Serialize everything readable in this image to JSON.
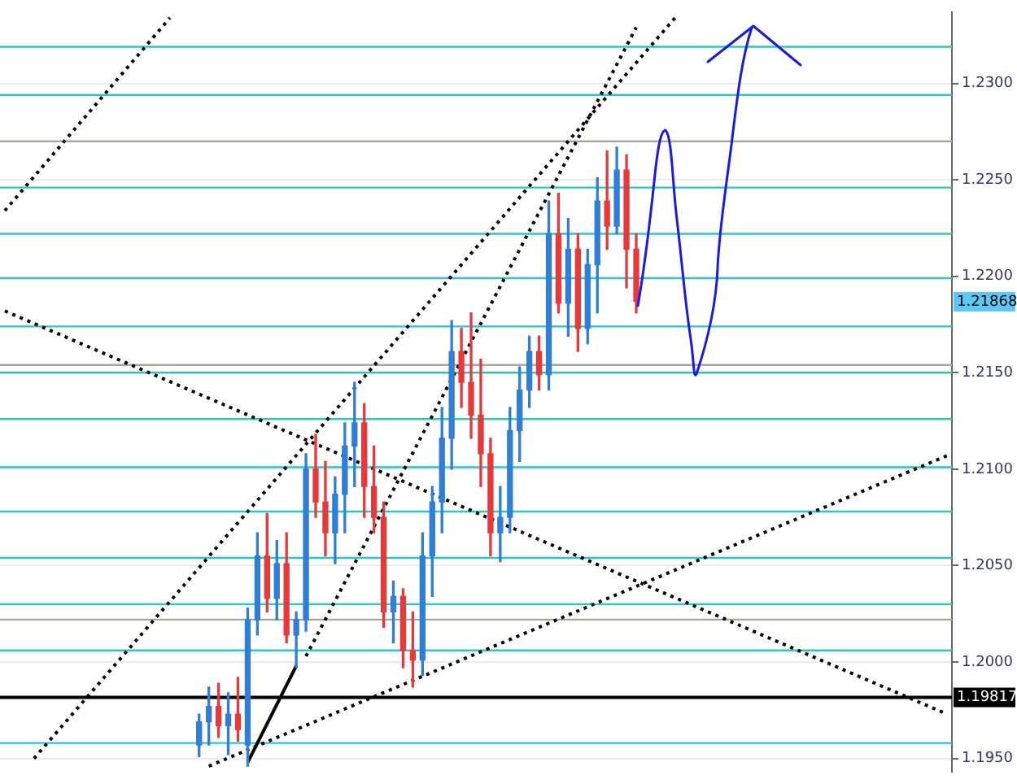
{
  "chart_data": {
    "type": "candlestick",
    "categories": [
      null,
      null,
      null,
      null,
      null,
      null,
      null,
      null,
      null,
      null,
      null,
      null,
      null,
      null,
      null,
      null,
      null,
      null,
      null,
      null,
      null,
      null,
      null,
      null,
      null,
      null,
      null,
      null,
      null,
      null,
      null,
      null,
      null,
      null,
      null,
      null,
      null,
      null,
      null,
      null,
      null,
      null,
      null,
      null,
      null,
      null,
      null,
      null,
      null,
      null,
      null,
      null,
      null,
      null,
      null,
      null,
      null,
      null,
      null,
      null,
      null,
      null,
      null,
      null,
      null,
      null,
      null,
      null,
      null,
      null,
      null,
      null,
      null,
      null,
      null,
      null,
      null,
      null,
      null,
      null,
      null,
      null,
      null,
      null,
      null,
      null,
      null,
      null,
      null,
      null,
      null,
      null,
      null,
      null,
      null,
      null,
      null,
      null
    ],
    "ohlc": [
      null,
      null,
      null,
      null,
      null,
      null,
      null,
      null,
      null,
      null,
      null,
      null,
      null,
      null,
      null,
      null,
      null,
      null,
      null,
      null,
      [
        1.1957,
        1.1973,
        1.1951,
        1.1969
      ],
      [
        1.1969,
        1.1987,
        1.1957,
        1.1977
      ],
      [
        1.1977,
        1.1989,
        1.1961,
        1.1967
      ],
      [
        1.1967,
        1.1984,
        1.1952,
        1.1973
      ],
      [
        1.1973,
        1.1992,
        1.1959,
        1.1965
      ],
      [
        1.1957,
        1.2028,
        1.1946,
        1.2022
      ],
      [
        1.2022,
        1.2067,
        1.2014,
        1.2055
      ],
      [
        1.2055,
        1.2077,
        1.2026,
        1.2033
      ],
      [
        1.2033,
        1.2063,
        1.2022,
        1.2051
      ],
      [
        1.2051,
        1.2067,
        1.201,
        1.2014
      ],
      [
        1.2014,
        1.2026,
        1.1997,
        1.2022
      ],
      [
        1.2022,
        1.2108,
        1.2016,
        1.21
      ],
      [
        1.21,
        1.2118,
        1.2075,
        1.2083
      ],
      [
        1.2083,
        1.2104,
        1.2055,
        1.2067
      ],
      [
        1.2067,
        1.2096,
        1.2051,
        1.2087
      ],
      [
        1.2087,
        1.2124,
        1.2067,
        1.2112
      ],
      [
        1.2112,
        1.2145,
        1.2091,
        1.2124
      ],
      [
        1.2124,
        1.2134,
        1.2075,
        1.2091
      ],
      [
        1.2091,
        1.2112,
        1.2067,
        1.2075
      ],
      [
        1.2075,
        1.2083,
        1.2018,
        1.2026
      ],
      [
        1.2026,
        1.2042,
        1.201,
        1.2034
      ],
      [
        1.2034,
        1.2038,
        1.1997,
        1.2006
      ],
      [
        1.2006,
        1.2026,
        1.1987,
        1.2001
      ],
      [
        1.2001,
        1.2067,
        1.1993,
        1.2055
      ],
      [
        1.2055,
        1.2091,
        1.2034,
        1.2083
      ],
      [
        1.2083,
        1.2132,
        1.2067,
        1.2116
      ],
      [
        1.2116,
        1.2177,
        1.21,
        1.2161
      ],
      [
        1.2161,
        1.2173,
        1.2132,
        1.2145
      ],
      [
        1.2145,
        1.2181,
        1.2116,
        1.2128
      ],
      [
        1.2128,
        1.2157,
        1.2091,
        1.2108
      ],
      [
        1.2108,
        1.2116,
        1.2055,
        1.2067
      ],
      [
        1.2067,
        1.2091,
        1.2052,
        1.2075
      ],
      [
        1.2075,
        1.2132,
        1.2067,
        1.212
      ],
      [
        1.212,
        1.2153,
        1.2104,
        1.2141
      ],
      [
        1.2141,
        1.2169,
        1.2132,
        1.2161
      ],
      [
        1.2161,
        1.2169,
        1.2141,
        1.2149
      ],
      [
        1.2149,
        1.2239,
        1.2141,
        1.2222
      ],
      [
        1.2222,
        1.2243,
        1.2181,
        1.2186
      ],
      [
        1.2186,
        1.223,
        1.2169,
        1.2214
      ],
      [
        1.2214,
        1.2222,
        1.2161,
        1.2173
      ],
      [
        1.2173,
        1.2214,
        1.2165,
        1.2206
      ],
      [
        1.2206,
        1.2251,
        1.2181,
        1.2239
      ],
      [
        1.2239,
        1.2265,
        1.2214,
        1.2226
      ],
      [
        1.2226,
        1.2267,
        1.2222,
        1.2255
      ],
      [
        1.2255,
        1.2263,
        1.2194,
        1.2214
      ],
      [
        1.2214,
        1.2222,
        1.2181,
        1.2187
      ],
      null,
      null,
      null,
      null,
      null,
      null,
      null,
      null,
      null,
      null,
      null,
      null,
      null,
      null,
      null,
      null,
      null,
      null,
      null,
      null,
      null,
      null,
      null,
      null,
      null,
      null,
      null,
      null,
      null,
      null,
      null,
      null
    ],
    "colors": [
      null,
      null,
      null,
      null,
      null,
      null,
      null,
      null,
      null,
      null,
      null,
      null,
      null,
      null,
      null,
      null,
      null,
      null,
      null,
      null,
      "#2f7ed8",
      "#2f7ed8",
      "#e8393a",
      "#2f7ed8",
      "#e8393a",
      "#2f7ed8",
      "#2f7ed8",
      "#e8393a",
      "#2f7ed8",
      "#e8393a",
      "#2f7ed8",
      "#2f7ed8",
      "#e8393a",
      "#e8393a",
      "#2f7ed8",
      "#2f7ed8",
      "#2f7ed8",
      "#e8393a",
      "#e8393a",
      "#e8393a",
      "#2f7ed8",
      "#e8393a",
      "#e8393a",
      "#2f7ed8",
      "#2f7ed8",
      "#2f7ed8",
      "#2f7ed8",
      "#e8393a",
      "#e8393a",
      "#e8393a",
      "#e8393a",
      "#2f7ed8",
      "#2f7ed8",
      "#2f7ed8",
      "#2f7ed8",
      "#e8393a",
      "#2f7ed8",
      "#e8393a",
      "#2f7ed8",
      "#e8393a",
      "#2f7ed8",
      "#2f7ed8",
      "#e8393a",
      "#2f7ed8",
      "#e8393a",
      "#e8393a",
      null,
      null,
      null,
      null,
      null,
      null,
      null,
      null,
      null,
      null,
      null,
      null,
      null,
      null,
      null,
      null,
      null,
      null,
      null,
      null,
      null,
      null,
      null,
      null,
      null,
      null,
      null,
      null,
      null,
      null,
      null,
      null
    ],
    "series": [
      {
        "type": "line",
        "color": "#000000",
        "line_style": "dotted",
        "values": [
          1.2234,
          null,
          null,
          null,
          null,
          null,
          null,
          null,
          null,
          null,
          null,
          null,
          null,
          null,
          null,
          null,
          null,
          1.2334,
          null,
          null,
          null,
          null,
          null,
          null,
          null,
          null,
          null,
          null,
          null,
          null,
          null,
          null,
          null,
          null,
          null,
          null,
          null,
          null,
          null,
          null,
          null,
          null,
          null,
          null,
          null,
          null,
          null,
          null,
          null,
          null,
          null,
          null,
          null,
          null,
          null,
          null,
          null,
          null,
          null,
          null,
          null,
          null,
          null,
          null,
          null,
          null,
          null,
          null,
          null,
          null,
          null,
          null,
          null,
          null,
          null,
          null,
          null,
          null,
          null,
          null,
          null,
          null,
          null,
          null,
          null,
          null,
          null,
          null,
          null,
          null,
          null,
          null,
          null,
          null,
          null,
          null,
          null,
          null
        ]
      },
      {
        "type": "line",
        "color": "#000000",
        "line_style": "dotted",
        "values": [
          1.2182,
          null,
          null,
          null,
          null,
          null,
          null,
          null,
          null,
          null,
          null,
          null,
          null,
          null,
          null,
          null,
          null,
          null,
          null,
          null,
          null,
          null,
          null,
          null,
          null,
          null,
          null,
          null,
          null,
          null,
          null,
          null,
          null,
          null,
          null,
          null,
          null,
          null,
          null,
          null,
          null,
          null,
          null,
          null,
          null,
          null,
          null,
          null,
          null,
          null,
          null,
          null,
          null,
          null,
          null,
          null,
          null,
          null,
          null,
          null,
          null,
          null,
          null,
          null,
          null,
          null,
          null,
          null,
          null,
          null,
          null,
          null,
          null,
          null,
          null,
          null,
          null,
          null,
          null,
          null,
          null,
          null,
          null,
          null,
          null,
          null,
          null,
          null,
          null,
          null,
          null,
          null,
          null,
          null,
          null,
          null,
          null,
          1.1973
        ]
      },
      {
        "type": "line",
        "color": "#000000",
        "line_style": "dotted",
        "values": [
          null,
          null,
          null,
          null,
          null,
          null,
          null,
          null,
          null,
          null,
          null,
          null,
          null,
          null,
          null,
          null,
          null,
          null,
          null,
          null,
          null,
          1.1946,
          null,
          null,
          null,
          null,
          null,
          null,
          null,
          null,
          null,
          null,
          null,
          null,
          null,
          null,
          null,
          null,
          null,
          null,
          null,
          null,
          null,
          null,
          null,
          null,
          null,
          null,
          null,
          null,
          null,
          null,
          null,
          null,
          null,
          null,
          null,
          null,
          null,
          null,
          null,
          null,
          null,
          null,
          null,
          null,
          null,
          null,
          null,
          null,
          null,
          null,
          null,
          null,
          null,
          null,
          null,
          null,
          null,
          null,
          null,
          null,
          null,
          null,
          null,
          null,
          null,
          null,
          null,
          null,
          null,
          null,
          null,
          null,
          null,
          null,
          null,
          1.2107
        ]
      },
      {
        "type": "line",
        "color": "#000000",
        "line_style": "dotted",
        "values": [
          null,
          null,
          null,
          1.195,
          null,
          null,
          null,
          null,
          null,
          null,
          null,
          null,
          null,
          null,
          null,
          null,
          null,
          null,
          null,
          null,
          null,
          null,
          null,
          null,
          null,
          null,
          null,
          null,
          null,
          null,
          null,
          null,
          null,
          null,
          null,
          null,
          null,
          null,
          null,
          null,
          null,
          null,
          null,
          null,
          null,
          null,
          null,
          null,
          null,
          null,
          null,
          null,
          null,
          null,
          null,
          null,
          null,
          null,
          null,
          null,
          null,
          null,
          null,
          null,
          null,
          null,
          null,
          null,
          null,
          1.2334,
          null,
          null,
          null,
          null,
          null,
          null,
          null,
          null,
          null,
          null,
          null,
          null,
          null,
          null,
          null,
          null,
          null,
          null,
          null,
          null,
          null,
          null,
          null,
          null,
          null,
          null,
          null,
          null
        ]
      },
      {
        "type": "line",
        "color": "#000000",
        "line_style": "dotted",
        "values": [
          null,
          null,
          null,
          null,
          null,
          null,
          null,
          null,
          null,
          null,
          null,
          null,
          null,
          null,
          null,
          null,
          null,
          null,
          null,
          null,
          null,
          null,
          null,
          null,
          null,
          null,
          null,
          null,
          null,
          null,
          null,
          1.2003,
          null,
          null,
          null,
          null,
          null,
          null,
          null,
          null,
          null,
          null,
          null,
          null,
          null,
          null,
          null,
          null,
          null,
          null,
          null,
          null,
          null,
          null,
          null,
          null,
          null,
          null,
          null,
          null,
          null,
          null,
          null,
          null,
          null,
          1.2329,
          null,
          null,
          null,
          null,
          null,
          null,
          null,
          null,
          null,
          null,
          null,
          null,
          null,
          null,
          null,
          null,
          null,
          null,
          null,
          null,
          null,
          null,
          null,
          null,
          null,
          null,
          null,
          null,
          null,
          null,
          null,
          null
        ]
      },
      {
        "type": "line",
        "color": "#000000",
        "line_style": "solid",
        "values": [
          null,
          null,
          null,
          null,
          null,
          null,
          null,
          null,
          null,
          null,
          null,
          null,
          null,
          null,
          null,
          null,
          null,
          null,
          null,
          null,
          null,
          null,
          null,
          null,
          null,
          1.1948,
          null,
          null,
          null,
          null,
          1.1998,
          null,
          null,
          null,
          null,
          null,
          null,
          null,
          null,
          null,
          null,
          null,
          null,
          null,
          null,
          null,
          null,
          null,
          null,
          null,
          null,
          null,
          null,
          null,
          null,
          null,
          null,
          null,
          null,
          null,
          null,
          null,
          null,
          null,
          null,
          null,
          null,
          null,
          null,
          null,
          null,
          null,
          null,
          null,
          null,
          null,
          null,
          null,
          null,
          null,
          null,
          null,
          null,
          null,
          null,
          null,
          null,
          null,
          null,
          null,
          null,
          null,
          null,
          null,
          null,
          null,
          null,
          null
        ]
      }
    ],
    "ylim": [
      1.1943,
      1.2337
    ],
    "yticks": [
      {
        "value": 1.195,
        "label": "1.1950"
      },
      {
        "value": 1.2,
        "label": "1.2000"
      },
      {
        "value": 1.205,
        "label": "1.2050"
      },
      {
        "value": 1.21,
        "label": "1.2100"
      },
      {
        "value": 1.215,
        "label": "1.2150"
      },
      {
        "value": 1.22,
        "label": "1.2200"
      },
      {
        "value": 1.225,
        "label": "1.2250"
      },
      {
        "value": 1.23,
        "label": "1.2300"
      }
    ],
    "tick_labels": "y",
    "grid": "y",
    "ref_lines": [
      {
        "axis": "y",
        "value": 1.2319,
        "color": "#2ec4c9"
      },
      {
        "axis": "y",
        "value": 1.2294,
        "color": "#2ec4c9"
      },
      {
        "axis": "y",
        "value": 1.227,
        "color": "#a9a99a"
      },
      {
        "axis": "y",
        "value": 1.2246,
        "color": "#2ec4c9"
      },
      {
        "axis": "y",
        "value": 1.2222,
        "color": "#2ec4c9"
      },
      {
        "axis": "y",
        "value": 1.2199,
        "color": "#2ec4c9"
      },
      {
        "axis": "y",
        "value": 1.2174,
        "color": "#2ec4c9"
      },
      {
        "axis": "y",
        "value": 1.2154,
        "color": "#a9a99a"
      },
      {
        "axis": "y",
        "value": 1.215,
        "color": "#2ec4c9"
      },
      {
        "axis": "y",
        "value": 1.2126,
        "color": "#2ec4c9"
      },
      {
        "axis": "y",
        "value": 1.2101,
        "color": "#2ec4c9"
      },
      {
        "axis": "y",
        "value": 1.2078,
        "color": "#2ec4c9"
      },
      {
        "axis": "y",
        "value": 1.2054,
        "color": "#2ec4c9"
      },
      {
        "axis": "y",
        "value": 1.203,
        "color": "#2ec4c9"
      },
      {
        "axis": "y",
        "value": 1.2022,
        "color": "#a9a99a"
      },
      {
        "axis": "y",
        "value": 1.2006,
        "color": "#2ec4c9"
      },
      {
        "axis": "y",
        "value": 1.19817,
        "label": "1.19817",
        "color": "#000000"
      },
      {
        "axis": "y",
        "value": 1.1958,
        "color": "#2ec4c9"
      }
    ],
    "annotations": [
      {
        "text": "1.21868",
        "y": 1.21868
      }
    ]
  }
}
